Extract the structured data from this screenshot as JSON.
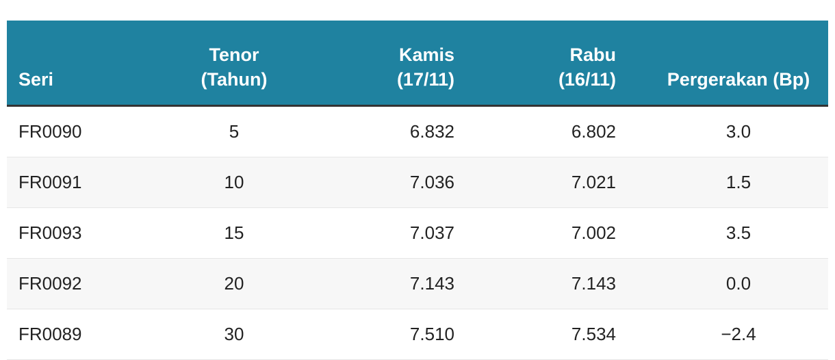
{
  "table": {
    "header": [
      "Seri",
      "Tenor (Tahun)",
      "Kamis (17/11)",
      "Rabu (16/11)",
      "Pergerakan (Bp)"
    ],
    "rows": [
      [
        "FR0090",
        "5",
        "6.832",
        "6.802",
        "3.0"
      ],
      [
        "FR0091",
        "10",
        "7.036",
        "7.021",
        "1.5"
      ],
      [
        "FR0093",
        "15",
        "7.037",
        "7.002",
        "3.5"
      ],
      [
        "FR0092",
        "20",
        "7.143",
        "7.143",
        "0.0"
      ],
      [
        "FR0089",
        "30",
        "7.510",
        "7.534",
        "−2.4"
      ]
    ]
  }
}
